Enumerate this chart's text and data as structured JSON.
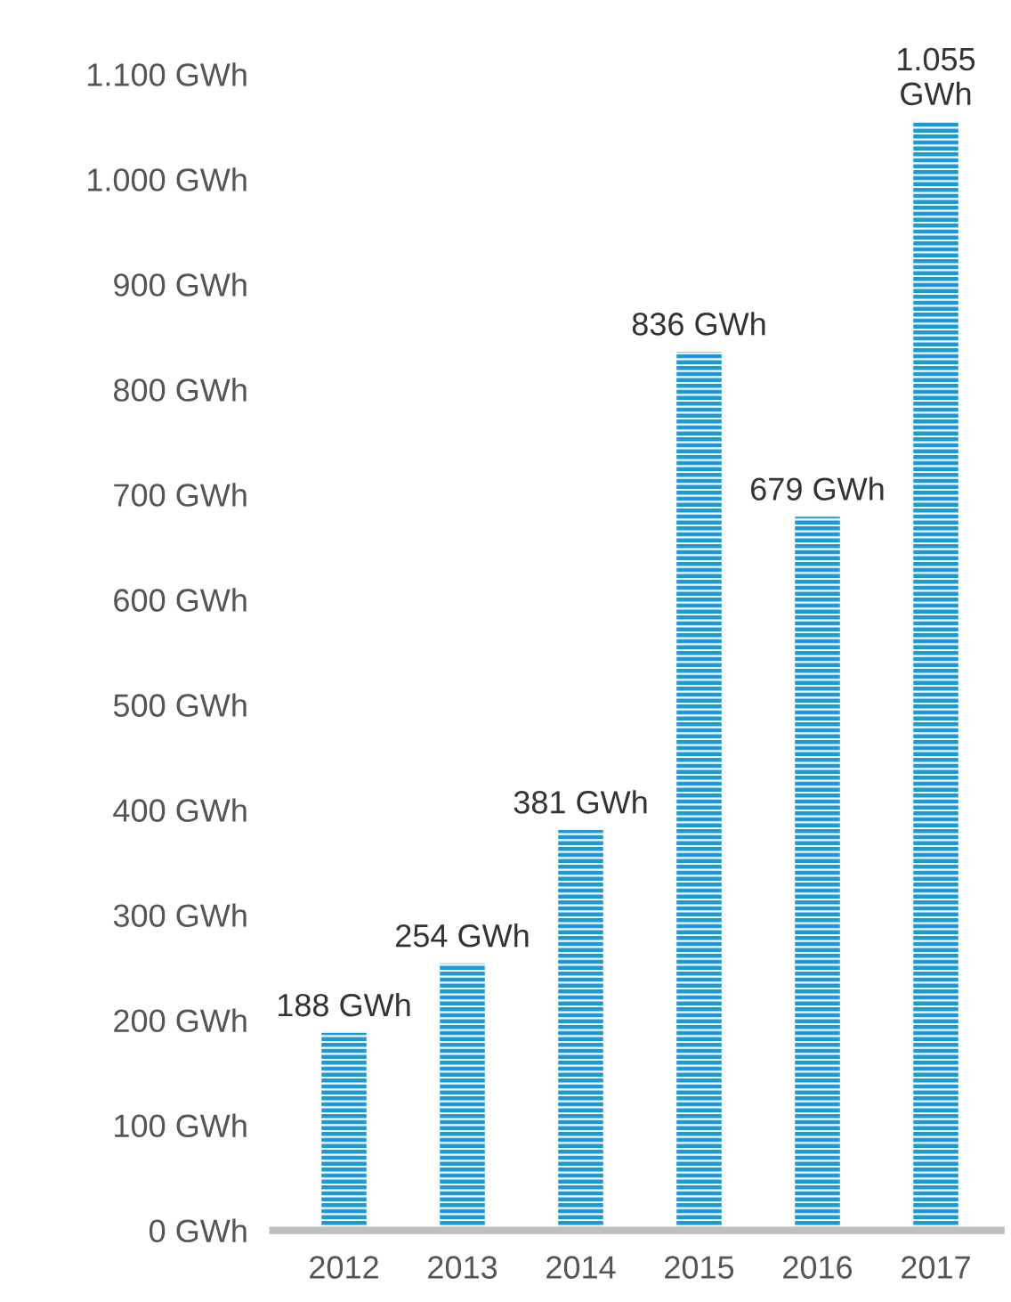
{
  "chart_data": {
    "type": "bar",
    "categories": [
      "2012",
      "2013",
      "2014",
      "2015",
      "2016",
      "2017"
    ],
    "values": [
      188,
      254,
      381,
      836,
      679,
      1055
    ],
    "value_labels": [
      "188 GWh",
      "254 GWh",
      "381 GWh",
      "836 GWh",
      "679 GWh",
      "1.055\nGWh"
    ],
    "color": "#1a9ad6",
    "ylim": [
      0,
      1100
    ],
    "yticks": [
      {
        "value": 0,
        "label": "0 GWh"
      },
      {
        "value": 100,
        "label": "100 GWh"
      },
      {
        "value": 200,
        "label": "200 GWh"
      },
      {
        "value": 300,
        "label": "300 GWh"
      },
      {
        "value": 400,
        "label": "400 GWh"
      },
      {
        "value": 500,
        "label": "500 GWh"
      },
      {
        "value": 600,
        "label": "600 GWh"
      },
      {
        "value": 700,
        "label": "700 GWh"
      },
      {
        "value": 800,
        "label": "800 GWh"
      },
      {
        "value": 900,
        "label": "900 GWh"
      },
      {
        "value": 1000,
        "label": "1.000 GWh"
      },
      {
        "value": 1100,
        "label": "1.100 GWh"
      }
    ],
    "grid": false
  }
}
